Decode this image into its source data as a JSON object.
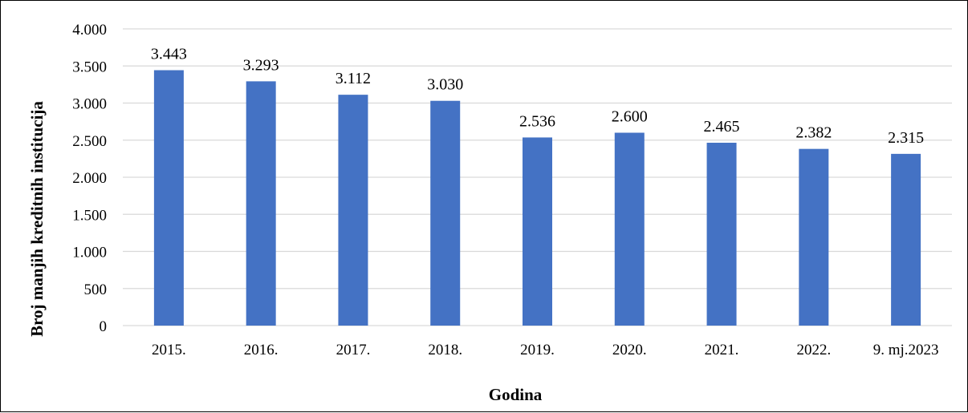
{
  "chart_data": {
    "type": "bar",
    "categories": [
      "2015.",
      "2016.",
      "2017.",
      "2018.",
      "2019.",
      "2020.",
      "2021.",
      "2022.",
      "9. mj.2023"
    ],
    "values": [
      3443,
      3293,
      3112,
      3030,
      2536,
      2600,
      2465,
      2382,
      2315
    ],
    "data_labels": [
      "3.443",
      "3.293",
      "3.112",
      "3.030",
      "2.536",
      "2.600",
      "2.465",
      "2.382",
      "2.315"
    ],
    "y_ticks": [
      0,
      500,
      1000,
      1500,
      2000,
      2500,
      3000,
      3500,
      4000
    ],
    "y_tick_labels": [
      "0",
      "500",
      "1.000",
      "1.500",
      "2.000",
      "2.500",
      "3.000",
      "3.500",
      "4.000"
    ],
    "ylim": [
      0,
      4000
    ],
    "xlabel": "Godina",
    "ylabel": "Broj manjih kreditnih institucija",
    "grid": true,
    "legend": "none",
    "bar_color": "#4472C4",
    "grid_color": "#D9D9D9"
  }
}
